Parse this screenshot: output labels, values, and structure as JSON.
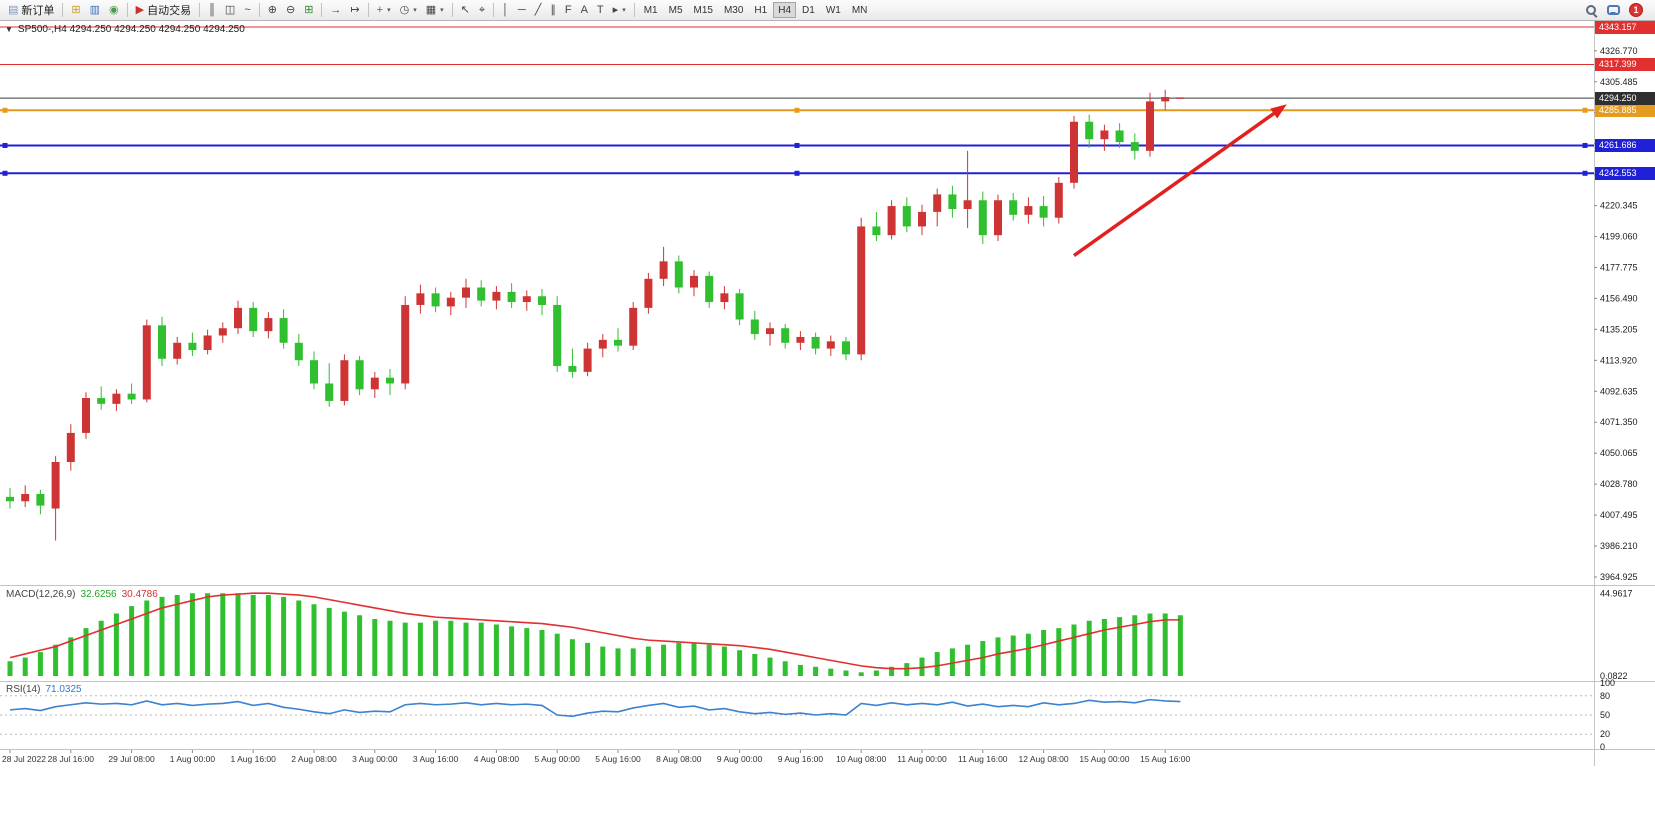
{
  "toolbar": {
    "items": [
      {
        "name": "new-order-button",
        "icon": "order-ticket-icon",
        "glyph": "▤",
        "glyph_color": "#7a96b8",
        "label": "新订单"
      },
      {
        "sep": true
      },
      {
        "name": "new-chart-button",
        "icon": "new-chart-icon",
        "glyph": "⊞",
        "glyph_color": "#c89a28"
      },
      {
        "name": "profiles-button",
        "icon": "profiles-folder-icon",
        "glyph": "▥",
        "glyph_color": "#3a6fc0"
      },
      {
        "name": "depth-of-market-button",
        "icon": "depth-of-market-icon",
        "glyph": "◉",
        "glyph_color": "#4a9a4a"
      },
      {
        "sep": true
      },
      {
        "name": "algo-trading-button",
        "icon": "algo-trading-icon",
        "glyph": "▶",
        "glyph_color": "#cc3030",
        "label": "自动交易"
      },
      {
        "sep": true
      },
      {
        "name": "bar-chart-button",
        "icon": "bar-chart-icon",
        "glyph": "║",
        "glyph_color": "#444444"
      },
      {
        "name": "candlestick-chart-button",
        "icon": "candlestick-icon",
        "glyph": "◫",
        "glyph_color": "#444444"
      },
      {
        "name": "line-chart-button",
        "icon": "line-chart-icon",
        "glyph": "~",
        "glyph_color": "#444444"
      },
      {
        "sep": true
      },
      {
        "name": "zoom-in-button",
        "icon": "zoom-in-icon",
        "glyph": "⊕",
        "glyph_color": "#444444"
      },
      {
        "name": "zoom-out-button",
        "icon": "zoom-out-icon",
        "glyph": "⊖",
        "glyph_color": "#444444"
      },
      {
        "name": "tile-windows-button",
        "icon": "tile-windows-icon",
        "glyph": "⊞",
        "glyph_color": "#2e8b2e"
      },
      {
        "sep": true
      },
      {
        "name": "auto-scroll-button",
        "icon": "auto-scroll-icon",
        "glyph": "→",
        "glyph_color": "#444444"
      },
      {
        "name": "chart-shift-button",
        "icon": "chart-shift-icon",
        "glyph": "↦",
        "glyph_color": "#444444"
      },
      {
        "sep": true
      },
      {
        "name": "indicators-button",
        "icon": "add-indicator-icon",
        "glyph": "+",
        "glyph_color": "#2e8b2e",
        "caret": true
      },
      {
        "name": "periods-button",
        "icon": "clock-icon",
        "glyph": "◷",
        "glyph_color": "#444444",
        "caret": true
      },
      {
        "name": "templates-button",
        "icon": "template-icon",
        "glyph": "▦",
        "glyph_color": "#444444",
        "caret": true
      },
      {
        "sep": true
      },
      {
        "name": "cursor-button",
        "icon": "cursor-icon",
        "glyph": "↖",
        "glyph_color": "#444444"
      },
      {
        "name": "crosshair-button",
        "icon": "crosshair-icon",
        "glyph": "⌖",
        "glyph_color": "#444444"
      },
      {
        "sep": true
      },
      {
        "name": "vertical-line-button",
        "icon": "vertical-line-icon",
        "glyph": "│",
        "glyph_color": "#444444"
      },
      {
        "name": "horizontal-line-button",
        "icon": "horizontal-line-icon",
        "glyph": "─",
        "glyph_color": "#444444"
      },
      {
        "name": "trendline-button",
        "icon": "trendline-icon",
        "glyph": "╱",
        "glyph_color": "#444444"
      },
      {
        "name": "channel-button",
        "icon": "equidistant-channel-icon",
        "glyph": "∥",
        "glyph_color": "#444444"
      },
      {
        "name": "fibonacci-button",
        "icon": "fibonacci-icon",
        "glyph": "F",
        "glyph_color": "#444444"
      },
      {
        "name": "text-button",
        "icon": "text-icon",
        "glyph": "A",
        "glyph_color": "#444444"
      },
      {
        "name": "label-button",
        "icon": "label-icon",
        "glyph": "T",
        "glyph_color": "#444444"
      },
      {
        "name": "shapes-button",
        "icon": "arrow-shape-icon",
        "glyph": "▸",
        "glyph_color": "#444444",
        "caret": true
      },
      {
        "sep": true
      }
    ],
    "timeframes": [
      "M1",
      "M5",
      "M15",
      "M30",
      "H1",
      "H4",
      "D1",
      "W1",
      "MN"
    ],
    "active_timeframe": "H4",
    "notification_count": "1"
  },
  "chart_header": {
    "title": "SP500-,H4  4294.250 4294.250 4294.250 4294.250"
  },
  "price_axis": {
    "ticks": [
      "4326.770",
      "4305.485",
      "4284.200",
      "4262.915",
      "4241.630",
      "4220.345",
      "4199.060",
      "4177.775",
      "4156.490",
      "4135.205",
      "4113.920",
      "4092.635",
      "4071.350",
      "4050.065",
      "4028.780",
      "4007.495",
      "3986.210",
      "3964.925"
    ],
    "badges": [
      {
        "value": "4343.157",
        "price": 4343.157,
        "color": "#e22f2f"
      },
      {
        "value": "4317.399",
        "price": 4317.399,
        "color": "#e22f2f"
      },
      {
        "value": "4285.885",
        "price": 4285.885,
        "color": "#e49b1e"
      },
      {
        "value": "4294.250",
        "price": 4294.25,
        "color": "#2f2f2f"
      },
      {
        "value": "4261.686",
        "price": 4261.686,
        "color": "#2020d8"
      },
      {
        "value": "4242.553",
        "price": 4242.553,
        "color": "#2020d8"
      }
    ]
  },
  "chart_data": [
    {
      "type": "candlestick",
      "symbol": "SP500-",
      "timeframe": "H4",
      "up_color": "#cf3434",
      "down_color": "#2fbf2f",
      "ylim": [
        3964.925,
        4343.157
      ],
      "ohlc": [
        [
          4020,
          4026,
          4012,
          4017
        ],
        [
          4017,
          4028,
          4013,
          4022
        ],
        [
          4022,
          4025,
          4008,
          4014
        ],
        [
          4012,
          4048,
          3990,
          4044
        ],
        [
          4044,
          4070,
          4038,
          4064
        ],
        [
          4064,
          4092,
          4060,
          4088
        ],
        [
          4088,
          4096,
          4080,
          4084
        ],
        [
          4084,
          4094,
          4079,
          4091
        ],
        [
          4091,
          4098,
          4084,
          4087
        ],
        [
          4087,
          4142,
          4085,
          4138
        ],
        [
          4138,
          4144,
          4110,
          4115
        ],
        [
          4115,
          4130,
          4111,
          4126
        ],
        [
          4126,
          4133,
          4117,
          4121
        ],
        [
          4121,
          4135,
          4118,
          4131
        ],
        [
          4131,
          4140,
          4126,
          4136
        ],
        [
          4136,
          4155,
          4132,
          4150
        ],
        [
          4150,
          4154,
          4130,
          4134
        ],
        [
          4134,
          4147,
          4129,
          4143
        ],
        [
          4143,
          4149,
          4122,
          4126
        ],
        [
          4126,
          4132,
          4110,
          4114
        ],
        [
          4114,
          4120,
          4094,
          4098
        ],
        [
          4098,
          4112,
          4082,
          4086
        ],
        [
          4086,
          4118,
          4083,
          4114
        ],
        [
          4114,
          4117,
          4090,
          4094
        ],
        [
          4094,
          4106,
          4088,
          4102
        ],
        [
          4102,
          4108,
          4090,
          4098
        ],
        [
          4098,
          4158,
          4094,
          4152
        ],
        [
          4152,
          4166,
          4146,
          4160
        ],
        [
          4160,
          4164,
          4147,
          4151
        ],
        [
          4151,
          4161,
          4145,
          4157
        ],
        [
          4157,
          4170,
          4150,
          4164
        ],
        [
          4164,
          4169,
          4151,
          4155
        ],
        [
          4155,
          4165,
          4149,
          4161
        ],
        [
          4161,
          4167,
          4150,
          4154
        ],
        [
          4154,
          4162,
          4148,
          4158
        ],
        [
          4158,
          4163,
          4145,
          4152
        ],
        [
          4152,
          4158,
          4106,
          4110
        ],
        [
          4110,
          4122,
          4102,
          4106
        ],
        [
          4106,
          4126,
          4103,
          4122
        ],
        [
          4122,
          4132,
          4116,
          4128
        ],
        [
          4128,
          4136,
          4120,
          4124
        ],
        [
          4124,
          4154,
          4121,
          4150
        ],
        [
          4150,
          4174,
          4146,
          4170
        ],
        [
          4170,
          4192,
          4165,
          4182
        ],
        [
          4182,
          4186,
          4160,
          4164
        ],
        [
          4164,
          4176,
          4158,
          4172
        ],
        [
          4172,
          4175,
          4150,
          4154
        ],
        [
          4154,
          4165,
          4149,
          4160
        ],
        [
          4160,
          4163,
          4138,
          4142
        ],
        [
          4142,
          4148,
          4128,
          4132
        ],
        [
          4132,
          4140,
          4124,
          4136
        ],
        [
          4136,
          4139,
          4122,
          4126
        ],
        [
          4126,
          4134,
          4121,
          4130
        ],
        [
          4130,
          4133,
          4118,
          4122
        ],
        [
          4122,
          4131,
          4117,
          4127
        ],
        [
          4127,
          4130,
          4114,
          4118
        ],
        [
          4118,
          4212,
          4114,
          4206
        ],
        [
          4206,
          4216,
          4196,
          4200
        ],
        [
          4200,
          4224,
          4197,
          4220
        ],
        [
          4220,
          4226,
          4202,
          4206
        ],
        [
          4206,
          4221,
          4200,
          4216
        ],
        [
          4216,
          4232,
          4206,
          4228
        ],
        [
          4228,
          4234,
          4212,
          4218
        ],
        [
          4218,
          4258,
          4205,
          4224
        ],
        [
          4224,
          4230,
          4194,
          4200
        ],
        [
          4200,
          4228,
          4196,
          4224
        ],
        [
          4224,
          4229,
          4210,
          4214
        ],
        [
          4214,
          4226,
          4208,
          4220
        ],
        [
          4220,
          4227,
          4206,
          4212
        ],
        [
          4212,
          4240,
          4208,
          4236
        ],
        [
          4236,
          4282,
          4232,
          4278
        ],
        [
          4278,
          4283,
          4260,
          4266
        ],
        [
          4266,
          4276,
          4258,
          4272
        ],
        [
          4272,
          4277,
          4260,
          4264
        ],
        [
          4264,
          4270,
          4252,
          4258
        ],
        [
          4258,
          4298,
          4254,
          4292
        ],
        [
          4292,
          4300,
          4286,
          4295
        ],
        [
          4294.25,
          4294.25,
          4294.25,
          4294.25
        ]
      ],
      "time_label_step": 4,
      "time_labels": [
        "28 Jul 2022",
        "28 Jul 16:00",
        "29 Jul 08:00",
        "1 Aug 00:00",
        "1 Aug 16:00",
        "2 Aug 08:00",
        "3 Aug 00:00",
        "3 Aug 16:00",
        "4 Aug 08:00",
        "5 Aug 00:00",
        "5 Aug 16:00",
        "8 Aug 08:00",
        "9 Aug 00:00",
        "9 Aug 16:00",
        "10 Aug 08:00",
        "11 Aug 00:00",
        "11 Aug 16:00",
        "12 Aug 08:00",
        "15 Aug 00:00",
        "15 Aug 16:00"
      ],
      "hlines": [
        {
          "price": 4343.157,
          "color": "#e22f2f",
          "width": 1
        },
        {
          "price": 4317.399,
          "color": "#e22f2f",
          "width": 1
        },
        {
          "price": 4294.25,
          "color": "#3c3c3c",
          "width": 1,
          "role": "current-price"
        },
        {
          "price": 4285.885,
          "color": "#e49b1e",
          "width": 2,
          "handles": true
        },
        {
          "price": 4261.686,
          "color": "#2020d8",
          "width": 2,
          "handles": true
        },
        {
          "price": 4242.553,
          "color": "#2020d8",
          "width": 2,
          "handles": true
        }
      ],
      "annotations": [
        {
          "type": "arrow",
          "color": "#e32020",
          "from_bar": 70,
          "from_price": 4186,
          "to_bar": 84,
          "to_price": 4290
        }
      ]
    },
    {
      "type": "bar",
      "name": "MACD(12,26,9)",
      "current_main": "32.6256",
      "current_signal": "30.4786",
      "axis_max": "44.9617",
      "axis_min": "0.0822",
      "ylim": [
        0,
        46
      ],
      "colors": {
        "histogram": "#2fbf2f",
        "signal": "#e22f2f"
      },
      "values": [
        8,
        10,
        13,
        17,
        21,
        26,
        30,
        34,
        38,
        41,
        43,
        44,
        45,
        45,
        45,
        45,
        44,
        44,
        43,
        41,
        39,
        37,
        35,
        33,
        31,
        30,
        29,
        29,
        30,
        30,
        29,
        29,
        28,
        27,
        26,
        25,
        23,
        20,
        18,
        16,
        15,
        15,
        16,
        17,
        18,
        18,
        17,
        16,
        14,
        12,
        10,
        8,
        6,
        5,
        4,
        3,
        2,
        3,
        5,
        7,
        10,
        13,
        15,
        17,
        19,
        21,
        22,
        23,
        25,
        26,
        28,
        30,
        31,
        32,
        33,
        34,
        34,
        33
      ],
      "signal": [
        10,
        12,
        14,
        16,
        19,
        22,
        25,
        28,
        31,
        34,
        37,
        39,
        41,
        43,
        44,
        44.5,
        45,
        45,
        44.5,
        44,
        43,
        41.5,
        40,
        38.5,
        37,
        35.5,
        34,
        33,
        32,
        31.5,
        31,
        30.5,
        30,
        29.5,
        29,
        28.5,
        27.5,
        26.5,
        25,
        23.5,
        22,
        20.5,
        19.5,
        19,
        18.5,
        18,
        17.5,
        17,
        16.5,
        15.5,
        14.5,
        13,
        11.5,
        10,
        8.5,
        7,
        5.5,
        4.5,
        4,
        4,
        4.5,
        5.5,
        7,
        8.5,
        10,
        12,
        13.5,
        15,
        17,
        19,
        21,
        23,
        25,
        26.5,
        28,
        29.5,
        30.5,
        30.5
      ]
    },
    {
      "type": "line",
      "name": "RSI(14)",
      "current": "71.0325",
      "color": "#3b82d0",
      "ylim": [
        0,
        100
      ],
      "levels": [
        80,
        50,
        20
      ],
      "axis_labels": [
        100,
        80,
        50,
        20,
        0
      ],
      "values": [
        58,
        60,
        57,
        63,
        66,
        69,
        67,
        68,
        66,
        72,
        66,
        68,
        65,
        67,
        68,
        71,
        65,
        68,
        62,
        59,
        55,
        52,
        58,
        54,
        56,
        55,
        66,
        68,
        66,
        67,
        69,
        66,
        68,
        66,
        67,
        65,
        50,
        48,
        53,
        56,
        55,
        61,
        65,
        68,
        62,
        64,
        58,
        60,
        55,
        52,
        54,
        51,
        53,
        50,
        52,
        50,
        68,
        65,
        69,
        66,
        68,
        66,
        70,
        64,
        67,
        63,
        65,
        63,
        69,
        66,
        68,
        73,
        70,
        71,
        69,
        74,
        72,
        71.03
      ]
    }
  ]
}
